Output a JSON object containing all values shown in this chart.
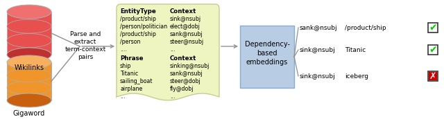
{
  "bg_color": "#ffffff",
  "wikilinks_color": "#e85050",
  "wikilinks_top": "#f07070",
  "wikilinks_bottom": "#c03030",
  "gigaword_color": "#f0952a",
  "gigaword_top": "#f8b060",
  "gigaword_bottom": "#c86010",
  "note_bg": "#eef5c0",
  "note_border": "#c8cc90",
  "dep_box_bg": "#b8cce4",
  "dep_box_border": "#8aaccf",
  "arrow_color": "#909090",
  "text_color": "#000000",
  "parse_text": "Parse and\nextract\nterm-context\npairs",
  "dep_text": "Dependency-\nbased\nembeddings",
  "entity_col1_header": "EntityType",
  "entity_col1": [
    "/product/ship",
    "/person/politician",
    "/product/ship",
    "/person",
    "...."
  ],
  "entity_col2_header": "Context",
  "entity_col2": [
    "sink@nsubj",
    "elect@dobj",
    "sank@nsubj",
    "steer@nsubj",
    "..."
  ],
  "phrase_col1_header": "Phrase",
  "phrase_col1": [
    "ship",
    "Titanic",
    "sailing_boat",
    "airplane",
    "..."
  ],
  "phrase_col2_header": "Context",
  "phrase_col2": [
    "sinking@nsubj",
    "sank@nsubj",
    "steer@dobj",
    "fly@dobj",
    "..."
  ],
  "result_rows": [
    {
      "context": "sank@nsubj",
      "term": "/product/ship",
      "check": "green"
    },
    {
      "context": "sink@nsubj",
      "term": "Titanic",
      "check": "green"
    },
    {
      "context": "sink@nsubj",
      "term": "iceberg",
      "check": "red"
    }
  ],
  "wikilinks_label": "Wikilinks",
  "gigaword_label": "Gigaword",
  "check_green_color": "#00cc00",
  "check_red_color": "#cc0000"
}
